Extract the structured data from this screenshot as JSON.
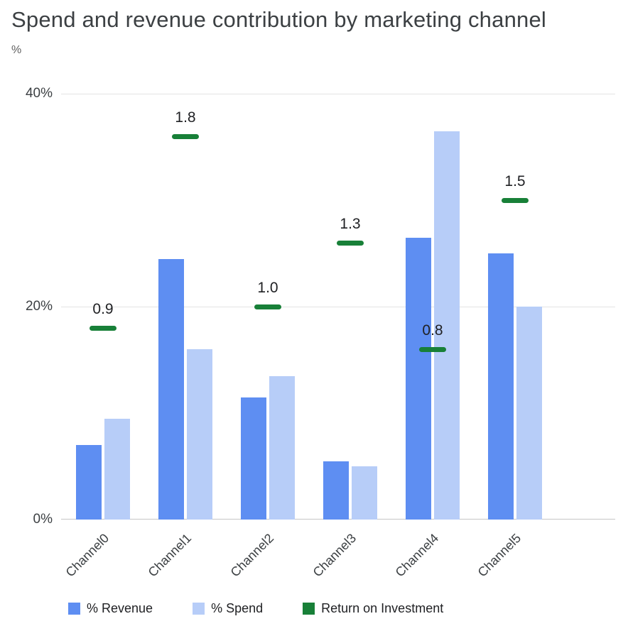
{
  "chart_data": {
    "type": "bar",
    "title": "Spend and revenue contribution by marketing channel",
    "ylabel": "%",
    "xlabel": "",
    "ylim": [
      0,
      40
    ],
    "yticks": [
      "0%",
      "20%",
      "40%"
    ],
    "grid": true,
    "legend_position": "bottom",
    "categories": [
      "Channel0",
      "Channel1",
      "Channel2",
      "Channel3",
      "Channel4",
      "Channel5"
    ],
    "series": [
      {
        "name": "% Revenue",
        "type": "bar",
        "color": "#5e8ef2",
        "values": [
          7,
          24.5,
          11.5,
          5.5,
          26.5,
          25
        ]
      },
      {
        "name": "% Spend",
        "type": "bar",
        "color": "#b7cdf8",
        "values": [
          9.5,
          16,
          13.5,
          5,
          36.5,
          20
        ]
      },
      {
        "name": "Return on Investment",
        "type": "dash-marker",
        "color": "#188038",
        "values": [
          0.9,
          1.8,
          1.0,
          1.3,
          0.8,
          1.5
        ],
        "labels": [
          "0.9",
          "1.8",
          "1.0",
          "1.3",
          "0.8",
          "1.5"
        ],
        "percent_per_unit": 20
      }
    ]
  }
}
